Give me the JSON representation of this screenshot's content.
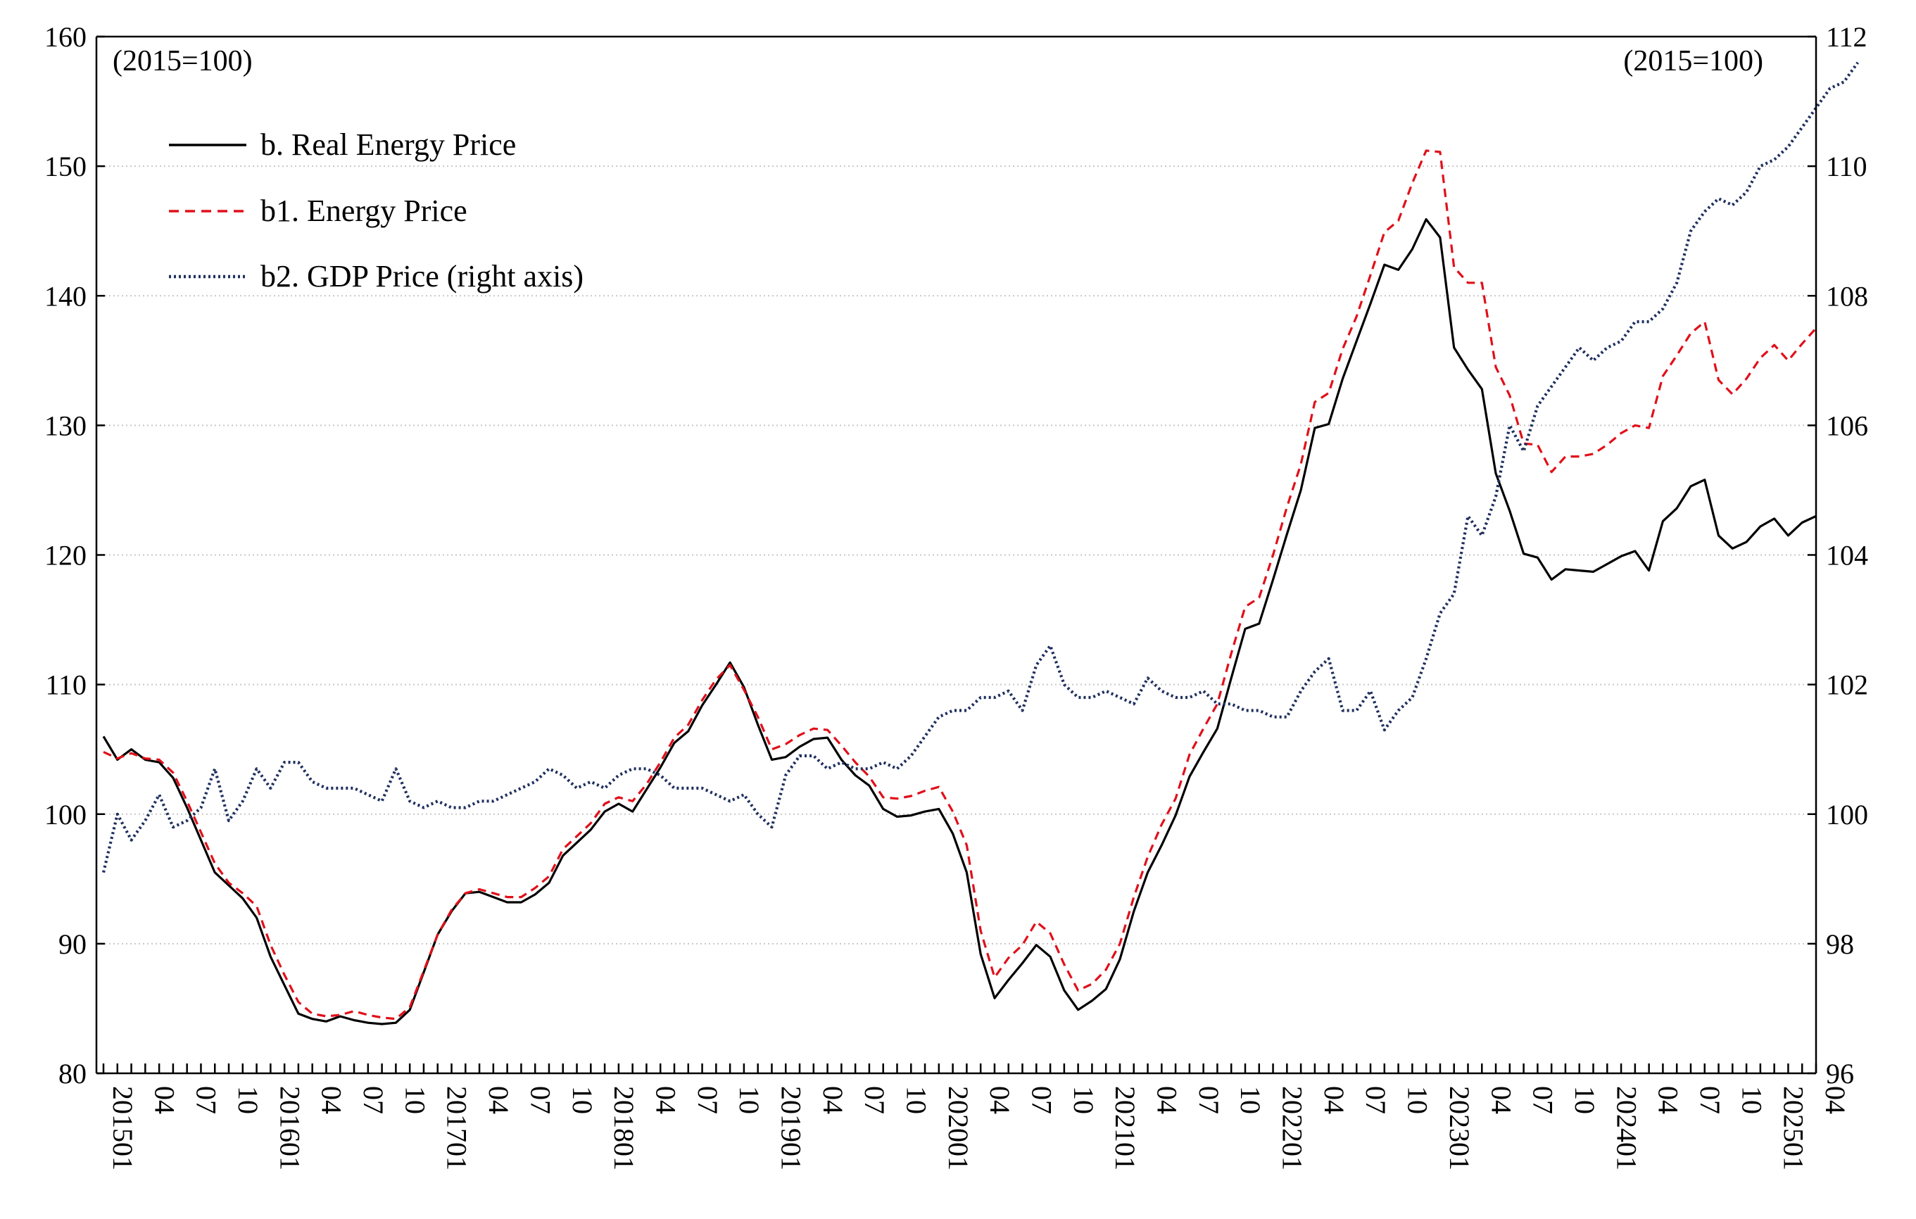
{
  "chart_data": {
    "type": "line",
    "title": "",
    "x_start": "2015-01",
    "x_end": "2025-04",
    "x_tick_labels": [
      "201501",
      "04",
      "07",
      "10",
      "201601",
      "04",
      "07",
      "10",
      "201701",
      "04",
      "07",
      "10",
      "201801",
      "04",
      "07",
      "10",
      "201901",
      "04",
      "07",
      "10",
      "202001",
      "04",
      "07",
      "10",
      "202101",
      "04",
      "07",
      "10",
      "202201",
      "04",
      "07",
      "10",
      "202301",
      "04",
      "07",
      "10",
      "202401",
      "04",
      "07",
      "10",
      "202501",
      "04"
    ],
    "left_axis": {
      "ylim": [
        80,
        160
      ],
      "ticks": [
        80,
        90,
        100,
        110,
        120,
        130,
        140,
        150,
        160
      ],
      "base_label": "(2015=100)"
    },
    "right_axis": {
      "ylim": [
        96,
        112
      ],
      "ticks": [
        96,
        98,
        100,
        102,
        104,
        106,
        108,
        110,
        112
      ],
      "base_label": "(2015=100)"
    },
    "series": [
      {
        "name": "b. Real Energy Price",
        "axis": "left",
        "color": "#000000",
        "style": "solid",
        "values": [
          106,
          104.2,
          105,
          104.2,
          104,
          102.8,
          100.5,
          98,
          95.5,
          94.5,
          93.5,
          92,
          89,
          86.8,
          84.6,
          84.2,
          84,
          84.4,
          84.1,
          83.9,
          83.8,
          83.9,
          84.9,
          87.8,
          90.7,
          92.5,
          93.9,
          94,
          93.6,
          93.2,
          93.2,
          93.8,
          94.7,
          96.8,
          97.8,
          98.8,
          100.2,
          100.8,
          100.2,
          101.9,
          103.6,
          105.5,
          106.4,
          108.4,
          110,
          111.7,
          109.8,
          106.9,
          104.2,
          104.4,
          105.2,
          105.8,
          105.9,
          104.2,
          103,
          102.2,
          100.4,
          99.8,
          99.9,
          100.2,
          100.4,
          98.5,
          95.5,
          89.2,
          85.8,
          87.2,
          88.5,
          89.9,
          89,
          86.4,
          84.9,
          85.6,
          86.5,
          88.8,
          92.5,
          95.5,
          97.6,
          99.9,
          102.9,
          104.8,
          106.6,
          110.5,
          114.3,
          114.7,
          118.1,
          121.6,
          125,
          129.8,
          130.1,
          133.6,
          136.5,
          139.4,
          142.4,
          142,
          143.6,
          145.9,
          144.5,
          136,
          134.3,
          132.8,
          126.3,
          123.4,
          120.1,
          119.8,
          118.1,
          118.9,
          118.8,
          118.7,
          119.3,
          119.9,
          120.3,
          118.8,
          122.6,
          123.6,
          125.3,
          125.8,
          121.5,
          120.5,
          121,
          122.2,
          122.8,
          121.5,
          122.5,
          123
        ]
      },
      {
        "name": "b1. Energy Price",
        "axis": "left",
        "color": "#e0101a",
        "style": "dashed",
        "values": [
          104.8,
          104.3,
          104.7,
          104.3,
          104.2,
          103.2,
          101,
          98.6,
          96.2,
          94.7,
          93.9,
          92.9,
          89.9,
          87.6,
          85.5,
          84.6,
          84.4,
          84.5,
          84.8,
          84.5,
          84.3,
          84.2,
          85.1,
          87.9,
          90.7,
          92.6,
          93.9,
          94.2,
          93.9,
          93.6,
          93.6,
          94.3,
          95.2,
          97.3,
          98.3,
          99.3,
          100.8,
          101.3,
          101,
          102.3,
          104,
          105.9,
          106.9,
          108.8,
          110.4,
          111.5,
          109.6,
          107.5,
          105,
          105.4,
          106.1,
          106.6,
          106.5,
          105.3,
          104,
          102.9,
          101.3,
          101.2,
          101.4,
          101.8,
          102.1,
          100.2,
          97.6,
          91,
          87.4,
          88.9,
          89.9,
          91.7,
          90.8,
          88.4,
          86.4,
          86.9,
          88,
          90,
          93.6,
          96.7,
          99.2,
          101.2,
          104.6,
          106.6,
          108.5,
          112.4,
          116,
          116.7,
          120,
          123.7,
          127,
          131.8,
          132.5,
          135.9,
          138.4,
          141.6,
          144.9,
          145.8,
          148.7,
          151.2,
          151.1,
          142.2,
          141,
          141,
          134.5,
          132.3,
          128.6,
          128.5,
          126.4,
          127.6,
          127.6,
          127.8,
          128.5,
          129.4,
          130,
          129.8,
          133.8,
          135.4,
          137.1,
          138,
          133.5,
          132.4,
          133.6,
          135.2,
          136.2,
          135,
          136.3,
          137.5
        ]
      },
      {
        "name": "b2. GDP Price (right axis)",
        "axis": "right",
        "color": "#1f2f5e",
        "style": "dotted",
        "values": [
          99.1,
          100,
          99.6,
          99.9,
          100.3,
          99.8,
          99.9,
          100.1,
          100.7,
          99.9,
          100.2,
          100.7,
          100.4,
          100.8,
          100.8,
          100.5,
          100.4,
          100.4,
          100.4,
          100.3,
          100.2,
          100.7,
          100.2,
          100.1,
          100.2,
          100.1,
          100.1,
          100.2,
          100.2,
          100.3,
          100.4,
          100.5,
          100.7,
          100.6,
          100.4,
          100.5,
          100.4,
          100.6,
          100.7,
          100.7,
          100.6,
          100.4,
          100.4,
          100.4,
          100.3,
          100.2,
          100.3,
          100,
          99.8,
          100.6,
          100.9,
          100.9,
          100.7,
          100.8,
          100.7,
          100.7,
          100.8,
          100.7,
          100.9,
          101.2,
          101.5,
          101.6,
          101.6,
          101.8,
          101.8,
          101.9,
          101.6,
          102.3,
          102.6,
          102,
          101.8,
          101.8,
          101.9,
          101.8,
          101.7,
          102.1,
          101.9,
          101.8,
          101.8,
          101.9,
          101.7,
          101.7,
          101.6,
          101.6,
          101.5,
          101.5,
          101.9,
          102.2,
          102.4,
          101.6,
          101.6,
          101.9,
          101.3,
          101.6,
          101.8,
          102.4,
          103.1,
          103.4,
          104.6,
          104.3,
          104.9,
          106,
          105.6,
          106.3,
          106.6,
          106.9,
          107.2,
          107,
          107.2,
          107.3,
          107.6,
          107.6,
          107.8,
          108.2,
          109,
          109.3,
          109.5,
          109.4,
          109.6,
          110,
          110.1,
          110.3,
          110.6,
          110.9,
          111.2,
          111.3,
          111.6
        ]
      }
    ],
    "legend": {
      "placement": "top-left",
      "entries": [
        "b. Real Energy Price",
        "b1. Energy Price",
        "b2. GDP Price (right axis)"
      ]
    },
    "grid": true
  }
}
